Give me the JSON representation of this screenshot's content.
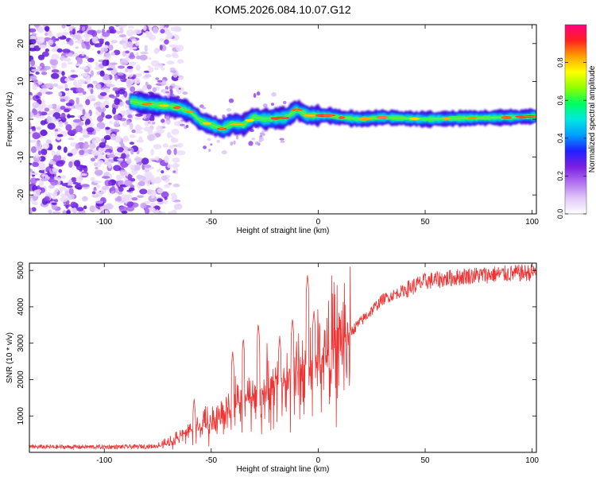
{
  "chart_data": [
    {
      "type": "heatmap",
      "title": "KOM5.2026.084.10.07.G12",
      "xlabel": "Height of straight line (km)",
      "ylabel": "Frequency (Hz)",
      "xlim": [
        -135,
        102
      ],
      "ylim": [
        -25,
        25
      ],
      "xticks": [
        "-100",
        "-50",
        "0",
        "50",
        "100"
      ],
      "yticks": [
        "-20",
        "-10",
        "0",
        "10",
        "20"
      ],
      "colorbar": {
        "label": "Normalized spectral amplitude",
        "range": [
          0,
          1
        ],
        "ticks": [
          "0.0",
          "0.2",
          "0.4",
          "0.6",
          "0.8"
        ],
        "colors": [
          "#ffffff",
          "#e0c8f8",
          "#b070f0",
          "#7a1fe0",
          "#2020ff",
          "#00a0ff",
          "#00e8e0",
          "#00ff60",
          "#90ff00",
          "#ffff00",
          "#ffa000",
          "#ff2020",
          "#ff0080"
        ]
      },
      "ridge": {
        "x": [
          -88,
          -80,
          -70,
          -65,
          -60,
          -55,
          -50,
          -45,
          -40,
          -35,
          -30,
          -25,
          -20,
          -15,
          -10,
          -5,
          0,
          5,
          10,
          20,
          30,
          50,
          70,
          90,
          102
        ],
        "y": [
          4.8,
          4.0,
          3.5,
          3.0,
          2.0,
          -0.5,
          -1.5,
          -2.5,
          -1.2,
          -1.5,
          0.5,
          0.0,
          0.2,
          0.5,
          2.5,
          1.0,
          1.0,
          1.0,
          0.5,
          0.0,
          0.5,
          0.0,
          0.3,
          0.5,
          0.8
        ]
      }
    },
    {
      "type": "line",
      "xlabel": "Height of straight line (km)",
      "ylabel": "SNR (10 * v/v)",
      "xlim": [
        -135,
        102
      ],
      "ylim": [
        0,
        5200
      ],
      "xticks": [
        "-100",
        "-50",
        "0",
        "50",
        "100"
      ],
      "yticks": [
        "1000",
        "2000",
        "3000",
        "4000",
        "5000"
      ],
      "color": "#ee3333",
      "trend": {
        "x": [
          -135,
          -90,
          -75,
          -70,
          -60,
          -50,
          -40,
          -30,
          -20,
          -10,
          -5,
          0,
          10,
          20,
          30,
          50,
          70,
          102
        ],
        "y": [
          150,
          150,
          170,
          250,
          600,
          800,
          1300,
          1500,
          1800,
          2100,
          2300,
          2500,
          3000,
          3600,
          4200,
          4700,
          4850,
          4950
        ]
      },
      "peaks": [
        {
          "x": -58,
          "y": 1500
        },
        {
          "x": -40,
          "y": 2800
        },
        {
          "x": -35,
          "y": 3150
        },
        {
          "x": -28,
          "y": 3550
        },
        {
          "x": -18,
          "y": 3200
        },
        {
          "x": -12,
          "y": 3700
        },
        {
          "x": -5,
          "y": 4900
        },
        {
          "x": -2,
          "y": 3900
        }
      ]
    }
  ]
}
